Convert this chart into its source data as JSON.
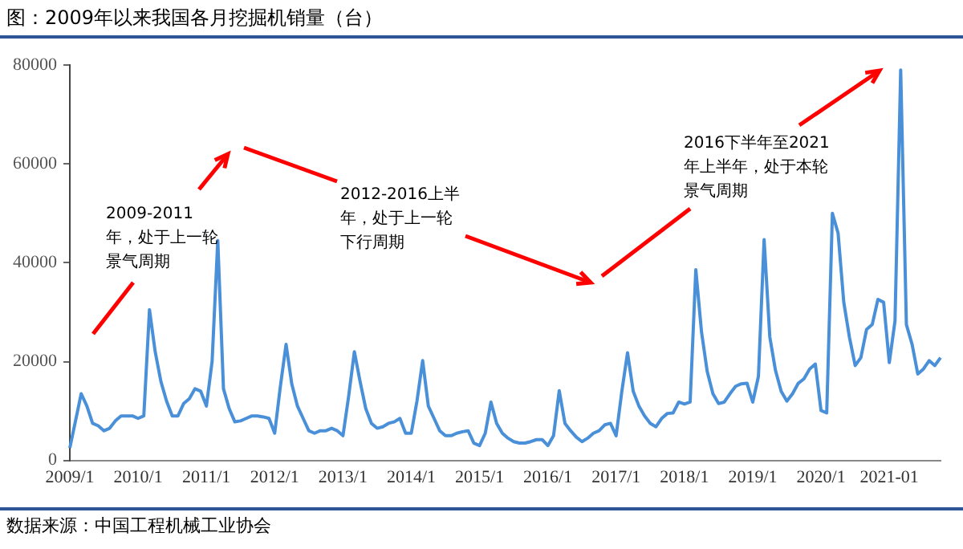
{
  "chart_data": {
    "type": "line",
    "title": "图：2009年以来我国各月挖掘机销量（台）",
    "categories": [
      "2009/1",
      null,
      null,
      null,
      null,
      null,
      null,
      null,
      null,
      null,
      null,
      null,
      "2010/1",
      null,
      null,
      null,
      null,
      null,
      null,
      null,
      null,
      null,
      null,
      null,
      "2011/1",
      null,
      null,
      null,
      null,
      null,
      null,
      null,
      null,
      null,
      null,
      null,
      "2012/1",
      null,
      null,
      null,
      null,
      null,
      null,
      null,
      null,
      null,
      null,
      null,
      "2013/1",
      null,
      null,
      null,
      null,
      null,
      null,
      null,
      null,
      null,
      null,
      null,
      "2014/1",
      null,
      null,
      null,
      null,
      null,
      null,
      null,
      null,
      null,
      null,
      null,
      "2015/1",
      null,
      null,
      null,
      null,
      null,
      null,
      null,
      null,
      null,
      null,
      null,
      "2016/1",
      null,
      null,
      null,
      null,
      null,
      null,
      null,
      null,
      null,
      null,
      null,
      "2017/1",
      null,
      null,
      null,
      null,
      null,
      null,
      null,
      null,
      null,
      null,
      null,
      "2018/1",
      null,
      null,
      null,
      null,
      null,
      null,
      null,
      null,
      null,
      null,
      null,
      "2019/1",
      null,
      null,
      null,
      null,
      null,
      null,
      null,
      null,
      null,
      null,
      null,
      "2020/1",
      null,
      null,
      null,
      null,
      null,
      null,
      null,
      null,
      null,
      null,
      null,
      "2021-01",
      null,
      null,
      null,
      null,
      null,
      null,
      null,
      null,
      null
    ],
    "values": [
      2500,
      8000,
      13500,
      11000,
      7500,
      7000,
      6000,
      6500,
      8000,
      9000,
      9000,
      9000,
      8500,
      9000,
      30500,
      22000,
      16000,
      12000,
      9000,
      9000,
      11500,
      12500,
      14500,
      14000,
      11000,
      20000,
      44500,
      14500,
      10500,
      7800,
      8000,
      8500,
      9000,
      9000,
      8800,
      8500,
      5500,
      15000,
      23500,
      15500,
      11000,
      8500,
      6000,
      5500,
      6000,
      6000,
      6500,
      6000,
      5000,
      13000,
      22000,
      16000,
      10500,
      7500,
      6500,
      6800,
      7500,
      7800,
      8500,
      5500,
      5500,
      12000,
      20200,
      11000,
      8500,
      6000,
      5000,
      5000,
      5500,
      5800,
      6000,
      3500,
      3000,
      5500,
      11800,
      7500,
      5500,
      4500,
      3800,
      3500,
      3500,
      3800,
      4200,
      4200,
      3000,
      5000,
      14100,
      7500,
      6000,
      4700,
      3800,
      4500,
      5500,
      6000,
      7200,
      7500,
      5000,
      14000,
      21800,
      14000,
      11000,
      9000,
      7500,
      6800,
      8500,
      9500,
      9600,
      11800,
      11400,
      11800,
      38600,
      26000,
      18000,
      13500,
      11500,
      11800,
      13500,
      15000,
      15500,
      15600,
      11800,
      17000,
      44700,
      25000,
      18200,
      14000,
      12000,
      13500,
      15600,
      16500,
      18500,
      19500,
      10100,
      9600,
      50000,
      46000,
      32000,
      24900,
      19200,
      20800,
      26500,
      27500,
      32600,
      32000,
      19800,
      28200,
      79000,
      27500,
      23500,
      17500,
      18500,
      20200,
      19200,
      20800
    ],
    "color": "#4a90d9",
    "ylim": [
      0,
      80000
    ],
    "yticks": [
      0,
      20000,
      40000,
      60000,
      80000
    ],
    "annotations": [
      "2009-2011年，处于上一轮景气周期",
      "2012-2016上半年，处于上一轮下行周期",
      "2016下半年至2021年上半年，处于本轮景气周期",
      "数据来源：中国工程机械工业协会"
    ]
  }
}
